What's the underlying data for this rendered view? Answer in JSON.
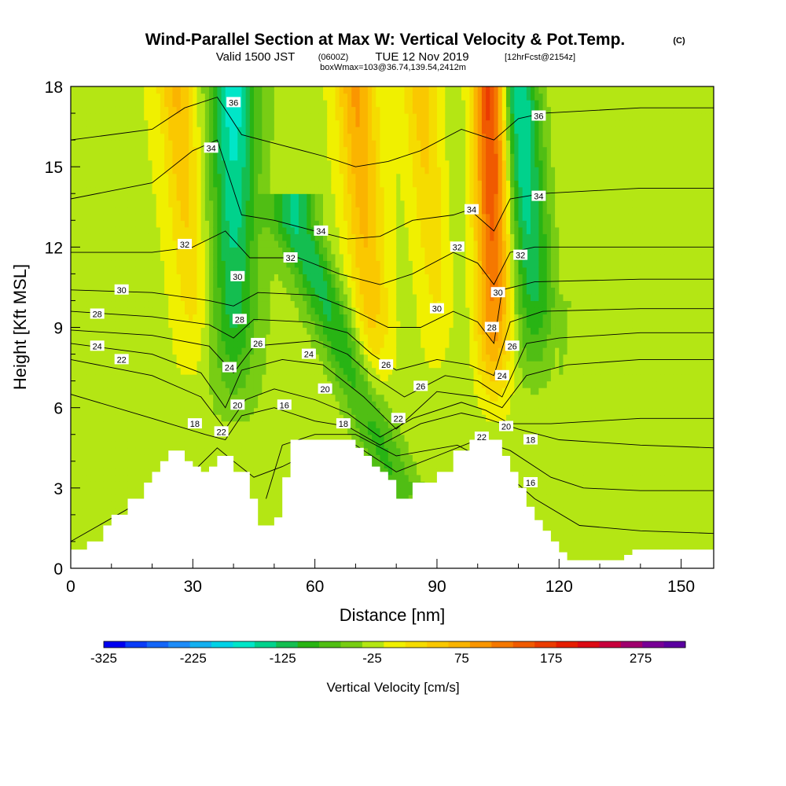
{
  "header": {
    "title": "Wind-Parallel Section at Max W: Vertical Velocity & Pot.Temp.",
    "title_mark": "(C)",
    "subtitle_a": "Valid 1500 JST",
    "subtitle_b": "(0600Z)",
    "subtitle_c": "TUE 12 Nov 2019",
    "subtitle_d": "[12hrFcst@2154z]",
    "subtitle_e": "boxWmax=103@36.74,139.54,2412m"
  },
  "chart_data": {
    "type": "heatmap",
    "title": "Wind-Parallel Section at Max W: Vertical Velocity & Pot.Temp.",
    "xlabel": "Distance [nm]",
    "ylabel": "Height [Kft MSL]",
    "xlim": [
      0,
      158
    ],
    "ylim": [
      0,
      18
    ],
    "x_ticks": [
      0,
      30,
      60,
      90,
      120,
      150
    ],
    "y_ticks": [
      0,
      3,
      6,
      9,
      12,
      15,
      18
    ],
    "x_tick_labels": [
      "0",
      "30",
      "60",
      "90",
      "120",
      "150"
    ],
    "y_tick_labels": [
      "0",
      "3",
      "6",
      "9",
      "12",
      "15",
      "18"
    ],
    "colorbar": {
      "title": "Vertical Velocity [cm/s]",
      "tick_labels": [
        "-325",
        "-225",
        "-125",
        "-25",
        "75",
        "175",
        "275"
      ],
      "ticks": [
        -325,
        -225,
        -125,
        -25,
        75,
        175,
        275
      ],
      "levels": [
        -325,
        -300,
        -275,
        -250,
        -225,
        -200,
        -175,
        -150,
        -125,
        -100,
        -75,
        -50,
        -25,
        0,
        25,
        50,
        75,
        100,
        125,
        150,
        175,
        200,
        225,
        250,
        275,
        300,
        325
      ],
      "colors": [
        "#0000f0",
        "#0a3cf8",
        "#1466f8",
        "#1e8cf8",
        "#14b0f0",
        "#00d2e6",
        "#00e6c8",
        "#00d28c",
        "#14be50",
        "#28b414",
        "#50be14",
        "#78cd14",
        "#b4e614",
        "#f0f000",
        "#f5dc00",
        "#fac800",
        "#fab400",
        "#fa9600",
        "#f57800",
        "#f05a00",
        "#eb3c00",
        "#e61e00",
        "#dc0a14",
        "#c8003c",
        "#a0006e",
        "#780096",
        "#5a00a0"
      ]
    },
    "terrain_profile": {
      "x": [
        0,
        2,
        4,
        6,
        8,
        10,
        12,
        14,
        16,
        18,
        20,
        22,
        24,
        26,
        28,
        30,
        32,
        34,
        36,
        38,
        40,
        42,
        44,
        46,
        48,
        50,
        52,
        54,
        56,
        58,
        60,
        62,
        64,
        66,
        68,
        70,
        72,
        74,
        76,
        78,
        80,
        82,
        84,
        86,
        88,
        90,
        92,
        94,
        96,
        98,
        100,
        102,
        104,
        106,
        108,
        110,
        112,
        114,
        116,
        118,
        120,
        122,
        124,
        126,
        128,
        130,
        132,
        134,
        136,
        138,
        140,
        142,
        144,
        146,
        148,
        150,
        152,
        154,
        156,
        158
      ],
      "height": [
        0.7,
        0.7,
        1.0,
        1.0,
        1.6,
        2.0,
        2.0,
        2.6,
        2.6,
        3.2,
        3.6,
        4.0,
        4.4,
        4.4,
        4.0,
        3.8,
        3.6,
        3.8,
        4.2,
        4.2,
        3.6,
        3.6,
        2.6,
        1.6,
        1.6,
        1.9,
        3.4,
        4.8,
        4.8,
        4.8,
        4.8,
        4.8,
        4.8,
        4.8,
        4.8,
        4.5,
        4.2,
        3.8,
        3.6,
        3.3,
        2.6,
        2.6,
        3.2,
        3.2,
        3.2,
        3.6,
        3.6,
        4.4,
        4.4,
        4.8,
        4.8,
        4.8,
        4.8,
        4.2,
        3.6,
        3.0,
        2.3,
        1.8,
        1.4,
        1.0,
        0.6,
        0.3,
        0.3,
        0.3,
        0.3,
        0.3,
        0.3,
        0.3,
        0.5,
        0.7,
        0.7,
        0.7,
        0.7,
        0.7,
        0.7,
        0.7,
        0.7,
        0.7,
        0.7,
        0.7
      ]
    },
    "w_features": [
      {
        "type": "updraft",
        "x_bottom": 104,
        "x_top": 103.5,
        "z_bottom": 9,
        "z_top": 18,
        "max_w": 250
      },
      {
        "type": "updraft",
        "x_bottom": 74,
        "x_top": 70,
        "z_bottom": 9,
        "z_top": 18,
        "max_w": 110
      },
      {
        "type": "updraft",
        "x_bottom": 30,
        "x_top": 26,
        "z_bottom": 10,
        "z_top": 18,
        "max_w": 90
      },
      {
        "type": "updraft",
        "x_bottom": 90,
        "x_top": 86,
        "z_bottom": 10,
        "z_top": 18,
        "max_w": 80
      },
      {
        "type": "downdraft",
        "x_bottom": 40,
        "x_top": 40,
        "z_bottom": 9,
        "z_top": 18,
        "max_w": -150
      },
      {
        "type": "downdraft",
        "x_bottom": 80,
        "x_top": 55,
        "z_bottom": 3,
        "z_top": 13,
        "max_w": -115
      },
      {
        "type": "downdraft",
        "x_bottom": 114,
        "x_top": 109,
        "z_bottom": 10,
        "z_top": 18,
        "max_w": -170
      }
    ],
    "contours": [
      {
        "theta": 18,
        "z": [
          [
            0,
            1.0
          ],
          [
            30,
            3.6
          ],
          [
            36,
            4.5
          ],
          [
            40,
            4.0
          ],
          [
            45,
            3.4
          ],
          [
            52,
            3.8
          ],
          [
            60,
            4.4
          ],
          [
            70,
            4.6
          ],
          [
            80,
            3.6
          ],
          [
            90,
            4.2
          ],
          [
            100,
            4.8
          ],
          [
            108,
            4.4
          ],
          [
            118,
            3.4
          ],
          [
            126,
            3.0
          ],
          [
            140,
            2.9
          ],
          [
            158,
            2.9
          ]
        ]
      },
      {
        "theta": 16,
        "z": [
          [
            48,
            2.6
          ],
          [
            52,
            4.6
          ],
          [
            60,
            5.0
          ],
          [
            70,
            5.0
          ],
          [
            80,
            4.2
          ],
          [
            95,
            4.6
          ],
          [
            105,
            3.8
          ],
          [
            114,
            2.6
          ],
          [
            125,
            1.6
          ],
          [
            140,
            1.4
          ],
          [
            158,
            1.3
          ]
        ]
      },
      {
        "theta": 20,
        "z": [
          [
            0,
            6.5
          ],
          [
            20,
            5.6
          ],
          [
            33,
            5.0
          ],
          [
            38,
            4.8
          ],
          [
            42,
            5.7
          ],
          [
            50,
            6.0
          ],
          [
            60,
            5.5
          ],
          [
            68,
            5.3
          ],
          [
            76,
            4.6
          ],
          [
            86,
            5.4
          ],
          [
            96,
            5.8
          ],
          [
            102,
            5.6
          ],
          [
            110,
            5.2
          ],
          [
            120,
            4.8
          ],
          [
            140,
            4.6
          ],
          [
            158,
            4.5
          ]
        ]
      },
      {
        "theta": 22,
        "z": [
          [
            0,
            7.8
          ],
          [
            20,
            7.2
          ],
          [
            32,
            6.4
          ],
          [
            38,
            5.2
          ],
          [
            43,
            6.3
          ],
          [
            50,
            6.7
          ],
          [
            60,
            6.3
          ],
          [
            68,
            5.8
          ],
          [
            76,
            4.9
          ],
          [
            84,
            5.6
          ],
          [
            96,
            6.2
          ],
          [
            102,
            5.9
          ],
          [
            108,
            5.4
          ],
          [
            118,
            5.4
          ],
          [
            140,
            5.6
          ],
          [
            158,
            5.6
          ]
        ]
      },
      {
        "theta": 24,
        "z": [
          [
            0,
            8.4
          ],
          [
            20,
            8.0
          ],
          [
            32,
            7.3
          ],
          [
            38,
            6.0
          ],
          [
            42,
            7.4
          ],
          [
            52,
            7.8
          ],
          [
            62,
            7.6
          ],
          [
            72,
            6.4
          ],
          [
            80,
            5.2
          ],
          [
            90,
            6.6
          ],
          [
            100,
            6.4
          ],
          [
            106,
            6.0
          ],
          [
            112,
            7.2
          ],
          [
            122,
            7.6
          ],
          [
            140,
            7.8
          ],
          [
            158,
            7.8
          ]
        ]
      },
      {
        "theta": 26,
        "z": [
          [
            0,
            8.9
          ],
          [
            20,
            8.7
          ],
          [
            34,
            8.3
          ],
          [
            40,
            7.3
          ],
          [
            45,
            8.3
          ],
          [
            60,
            8.5
          ],
          [
            68,
            8.0
          ],
          [
            74,
            7.2
          ],
          [
            82,
            6.4
          ],
          [
            92,
            7.2
          ],
          [
            100,
            7.0
          ],
          [
            106,
            6.4
          ],
          [
            112,
            8.4
          ],
          [
            120,
            8.6
          ],
          [
            140,
            8.8
          ],
          [
            158,
            8.8
          ]
        ]
      },
      {
        "theta": 28,
        "z": [
          [
            0,
            9.6
          ],
          [
            20,
            9.4
          ],
          [
            34,
            9.1
          ],
          [
            40,
            8.6
          ],
          [
            45,
            9.3
          ],
          [
            58,
            9.2
          ],
          [
            68,
            8.8
          ],
          [
            74,
            8.0
          ],
          [
            80,
            7.4
          ],
          [
            90,
            7.8
          ],
          [
            98,
            7.6
          ],
          [
            104,
            7.2
          ],
          [
            108,
            9.2
          ],
          [
            116,
            9.6
          ],
          [
            140,
            9.7
          ],
          [
            158,
            9.7
          ]
        ]
      },
      {
        "theta": 30,
        "z": [
          [
            0,
            10.4
          ],
          [
            20,
            10.3
          ],
          [
            34,
            10.0
          ],
          [
            40,
            9.8
          ],
          [
            46,
            10.3
          ],
          [
            60,
            10.2
          ],
          [
            70,
            9.6
          ],
          [
            78,
            9.0
          ],
          [
            86,
            9.0
          ],
          [
            94,
            9.6
          ],
          [
            100,
            9.2
          ],
          [
            104,
            8.4
          ],
          [
            106,
            10.4
          ],
          [
            114,
            10.7
          ],
          [
            140,
            10.8
          ],
          [
            158,
            10.8
          ]
        ]
      },
      {
        "theta": 32,
        "z": [
          [
            0,
            11.8
          ],
          [
            20,
            11.8
          ],
          [
            30,
            12.0
          ],
          [
            38,
            12.6
          ],
          [
            44,
            11.6
          ],
          [
            56,
            11.6
          ],
          [
            66,
            11.0
          ],
          [
            76,
            10.6
          ],
          [
            84,
            11.0
          ],
          [
            94,
            11.8
          ],
          [
            100,
            11.4
          ],
          [
            104,
            10.6
          ],
          [
            108,
            11.8
          ],
          [
            114,
            12.0
          ],
          [
            140,
            12.0
          ],
          [
            158,
            12.0
          ]
        ]
      },
      {
        "theta": 34,
        "z": [
          [
            0,
            13.8
          ],
          [
            20,
            14.4
          ],
          [
            30,
            15.6
          ],
          [
            36,
            16.0
          ],
          [
            42,
            13.2
          ],
          [
            50,
            13.0
          ],
          [
            60,
            12.6
          ],
          [
            68,
            12.3
          ],
          [
            76,
            12.4
          ],
          [
            84,
            13.0
          ],
          [
            94,
            13.2
          ],
          [
            98,
            13.4
          ],
          [
            104,
            12.6
          ],
          [
            108,
            13.8
          ],
          [
            116,
            14.0
          ],
          [
            140,
            14.2
          ],
          [
            158,
            14.2
          ]
        ]
      },
      {
        "theta": 36,
        "z": [
          [
            0,
            16.0
          ],
          [
            20,
            16.4
          ],
          [
            28,
            17.2
          ],
          [
            36,
            17.6
          ],
          [
            42,
            16.2
          ],
          [
            52,
            15.8
          ],
          [
            62,
            15.4
          ],
          [
            70,
            15.0
          ],
          [
            78,
            15.2
          ],
          [
            86,
            15.6
          ],
          [
            96,
            16.4
          ],
          [
            104,
            16.0
          ],
          [
            110,
            16.8
          ],
          [
            116,
            17.0
          ],
          [
            140,
            17.2
          ],
          [
            158,
            17.2
          ]
        ]
      }
    ],
    "contour_labels": [
      {
        "text": "36",
        "x": 40,
        "z": 17.4
      },
      {
        "text": "36",
        "x": 115,
        "z": 16.9
      },
      {
        "text": "34",
        "x": 34.5,
        "z": 15.7
      },
      {
        "text": "34",
        "x": 115,
        "z": 13.9
      },
      {
        "text": "34",
        "x": 61.5,
        "z": 12.6
      },
      {
        "text": "34",
        "x": 98.5,
        "z": 13.4
      },
      {
        "text": "32",
        "x": 28,
        "z": 12.1
      },
      {
        "text": "32",
        "x": 54,
        "z": 11.6
      },
      {
        "text": "32",
        "x": 95,
        "z": 12.0
      },
      {
        "text": "32",
        "x": 110.5,
        "z": 11.7
      },
      {
        "text": "30",
        "x": 12.5,
        "z": 10.4
      },
      {
        "text": "30",
        "x": 41,
        "z": 10.9
      },
      {
        "text": "30",
        "x": 90,
        "z": 9.7
      },
      {
        "text": "30",
        "x": 105,
        "z": 10.3
      },
      {
        "text": "28",
        "x": 6.5,
        "z": 9.5
      },
      {
        "text": "28",
        "x": 41.5,
        "z": 9.3
      },
      {
        "text": "28",
        "x": 103.5,
        "z": 9.0
      },
      {
        "text": "26",
        "x": 46,
        "z": 8.4
      },
      {
        "text": "26",
        "x": 77.5,
        "z": 7.6
      },
      {
        "text": "26",
        "x": 86,
        "z": 6.8
      },
      {
        "text": "26",
        "x": 108.5,
        "z": 8.3
      },
      {
        "text": "24",
        "x": 6.5,
        "z": 8.3
      },
      {
        "text": "24",
        "x": 39,
        "z": 7.5
      },
      {
        "text": "24",
        "x": 58.5,
        "z": 8.0
      },
      {
        "text": "24",
        "x": 106,
        "z": 7.2
      },
      {
        "text": "22",
        "x": 12.5,
        "z": 7.8
      },
      {
        "text": "22",
        "x": 37,
        "z": 5.1
      },
      {
        "text": "22",
        "x": 80.5,
        "z": 5.6
      },
      {
        "text": "22",
        "x": 101,
        "z": 4.9
      },
      {
        "text": "20",
        "x": 41,
        "z": 6.1
      },
      {
        "text": "20",
        "x": 62.5,
        "z": 6.7
      },
      {
        "text": "20",
        "x": 107,
        "z": 5.3
      },
      {
        "text": "18",
        "x": 30.5,
        "z": 5.4
      },
      {
        "text": "18",
        "x": 67,
        "z": 5.4
      },
      {
        "text": "18",
        "x": 113,
        "z": 4.8
      },
      {
        "text": "16",
        "x": 52.5,
        "z": 6.1
      },
      {
        "text": "16",
        "x": 113,
        "z": 3.2
      }
    ]
  }
}
